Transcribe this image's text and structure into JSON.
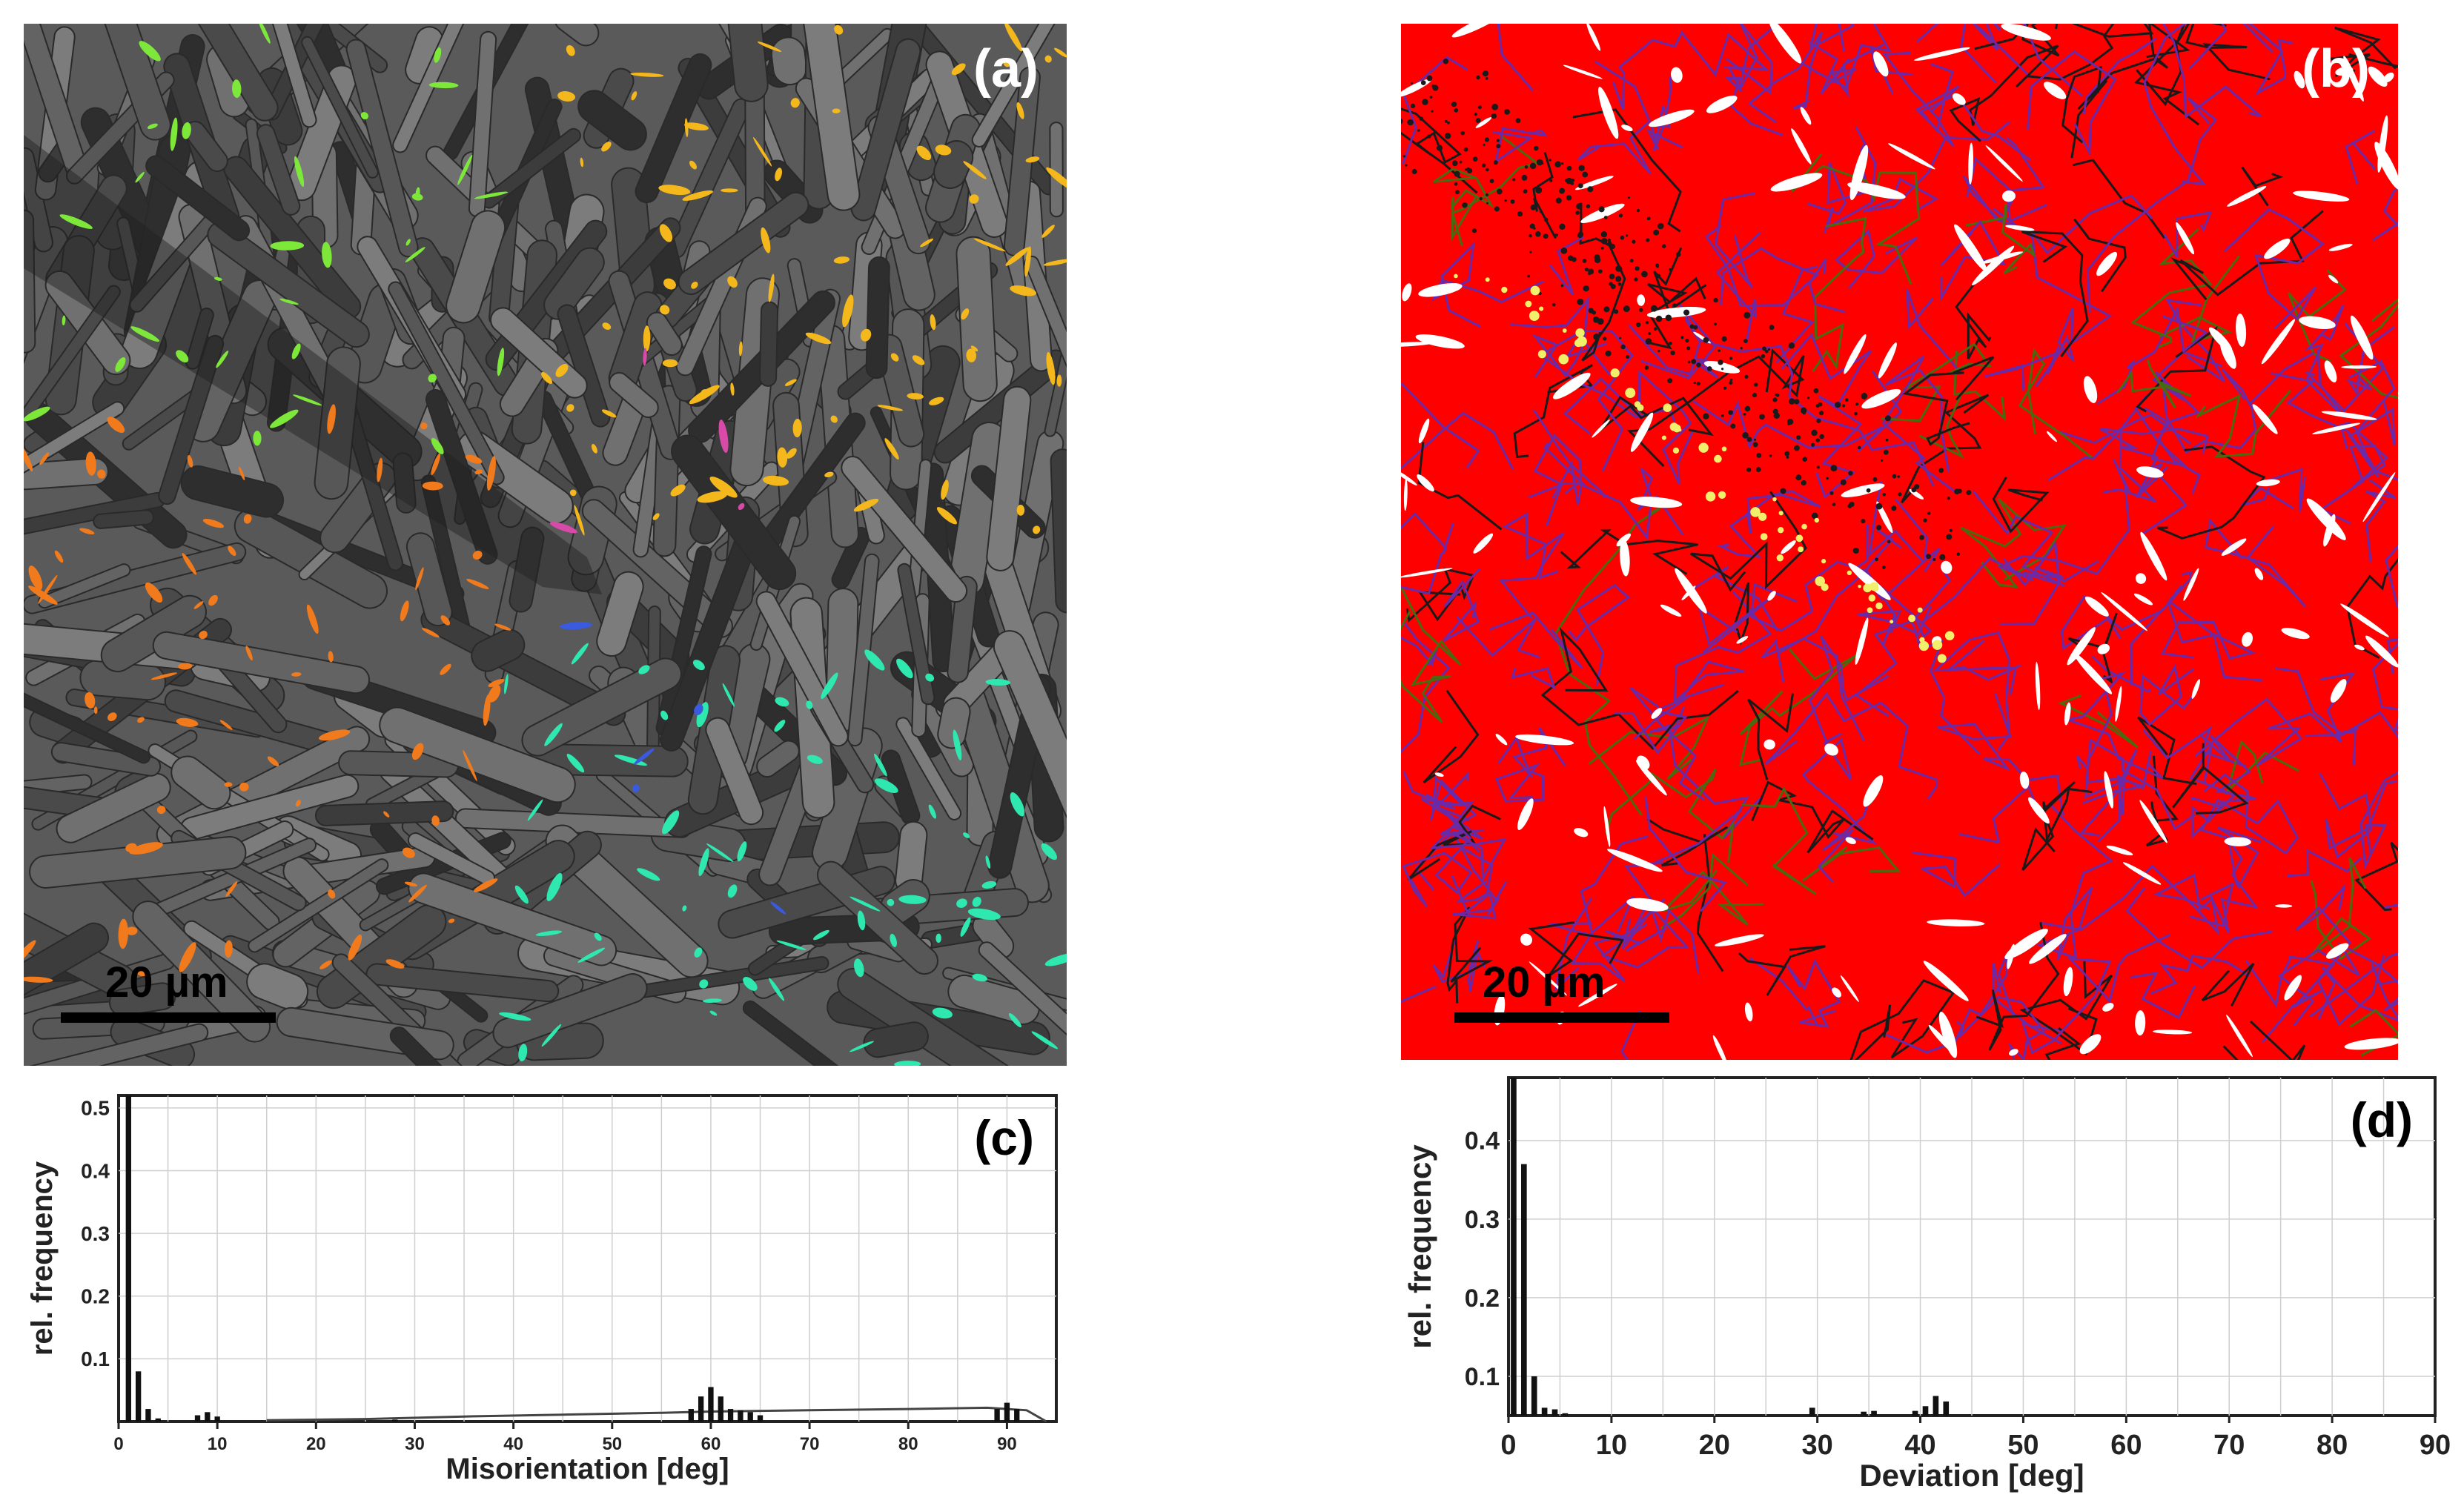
{
  "panels": {
    "a": {
      "label": "(a)",
      "scale_label": "20 µm"
    },
    "b": {
      "label": "(b)",
      "scale_label": "20 µm"
    }
  },
  "map_colors": {
    "a_background": "#5a5a5a",
    "a_grain_colors": [
      "#f5b81c",
      "#f07a1c",
      "#7ee83a",
      "#2ee8b0",
      "#d84aa8",
      "#3a5ae0"
    ],
    "b_background": "#ff0000",
    "b_boundary_colors": [
      "#6a2aa8",
      "#1a1a1a",
      "#4a6a12",
      "#ffffff",
      "#f0f06a"
    ]
  },
  "chart_data": [
    {
      "id": "c",
      "type": "bar",
      "panel_label": "(c)",
      "xlabel": "Misorientation [deg]",
      "ylabel": "rel. frequency",
      "xlim": [
        0,
        95
      ],
      "ylim": [
        0,
        0.52
      ],
      "xticks": [
        0,
        10,
        20,
        30,
        40,
        50,
        60,
        70,
        80,
        90
      ],
      "yticks": [
        0.1,
        0.2,
        0.3,
        0.4,
        0.5
      ],
      "ytick_labels": [
        "0.1",
        "0.2",
        "0.3",
        "0.4",
        "0.5"
      ],
      "grid": true,
      "bars": {
        "x": [
          1,
          2,
          3,
          4,
          8,
          9,
          10,
          28,
          58,
          59,
          60,
          61,
          62,
          63,
          64,
          65,
          89,
          90,
          91
        ],
        "values": [
          0.52,
          0.08,
          0.02,
          0.005,
          0.01,
          0.015,
          0.008,
          0.003,
          0.02,
          0.04,
          0.055,
          0.04,
          0.02,
          0.018,
          0.015,
          0.01,
          0.02,
          0.03,
          0.02
        ]
      },
      "curve": {
        "x": [
          15,
          25,
          35,
          45,
          55,
          60,
          70,
          80,
          88,
          92,
          94
        ],
        "values": [
          0.002,
          0.004,
          0.008,
          0.011,
          0.014,
          0.016,
          0.018,
          0.02,
          0.022,
          0.018,
          0.0
        ]
      }
    },
    {
      "id": "d",
      "type": "bar",
      "panel_label": "(d)",
      "xlabel": "Deviation [deg]",
      "ylabel": "rel. frequency",
      "xlim": [
        0,
        90
      ],
      "ylim": [
        0.05,
        0.48
      ],
      "xticks": [
        0,
        10,
        20,
        30,
        40,
        50,
        60,
        70,
        80,
        90
      ],
      "yticks": [
        0.1,
        0.2,
        0.3,
        0.4
      ],
      "ytick_labels": [
        "0.1",
        "0.2",
        "0.3",
        "0.4"
      ],
      "grid": true,
      "bars": {
        "x": [
          0.5,
          1.5,
          2.5,
          3.5,
          4.5,
          5.5,
          29.5,
          34.5,
          35.5,
          39.5,
          40.5,
          41.5,
          42.5
        ],
        "values": [
          0.48,
          0.37,
          0.1,
          0.06,
          0.058,
          0.053,
          0.06,
          0.055,
          0.056,
          0.056,
          0.062,
          0.075,
          0.068
        ]
      }
    }
  ]
}
